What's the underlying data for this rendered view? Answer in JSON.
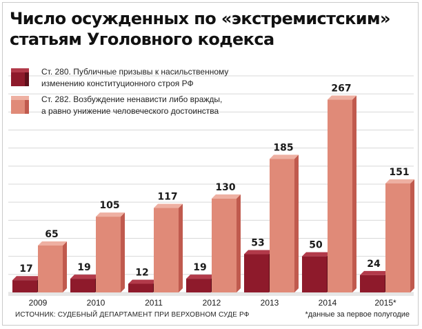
{
  "title": {
    "line1": "Число осужденных по «экстремистским»",
    "line2": "статьям Уголовного кодекса"
  },
  "legend": [
    {
      "line1": "Ст. 280. Публичные призывы к насильственному",
      "line2": "изменению конституционного строя РФ"
    },
    {
      "line1": "Ст. 282. Возбуждение ненависти либо вражды,",
      "line2": "а равно унижение человеческого достоинства"
    }
  ],
  "colors": {
    "art280_face": "#8e1a2b",
    "art280_side": "#5e0f1a",
    "art280_top": "#b23a4a",
    "art282_face": "#e08a78",
    "art282_side": "#c05a4e",
    "art282_top": "#eeb0a2",
    "grid": "#d8d8d8",
    "floor": "#e6e6e6"
  },
  "chart_data": {
    "type": "bar",
    "categories": [
      "2009",
      "2010",
      "2011",
      "2012",
      "2013",
      "2014",
      "2015*"
    ],
    "series": [
      {
        "name": "Ст. 280",
        "values": [
          17,
          19,
          12,
          19,
          53,
          50,
          24
        ]
      },
      {
        "name": "Ст. 282",
        "values": [
          65,
          105,
          117,
          130,
          185,
          267,
          151
        ]
      }
    ],
    "ylim": [
      0,
      300
    ],
    "grid": true,
    "legend_position": "top-left"
  },
  "source": "ИСТОЧНИК: СУДЕБНЫЙ ДЕПАРТАМЕНТ ПРИ ВЕРХОВНОМ СУДЕ РФ",
  "footnote": "*данные за первое полугодие"
}
